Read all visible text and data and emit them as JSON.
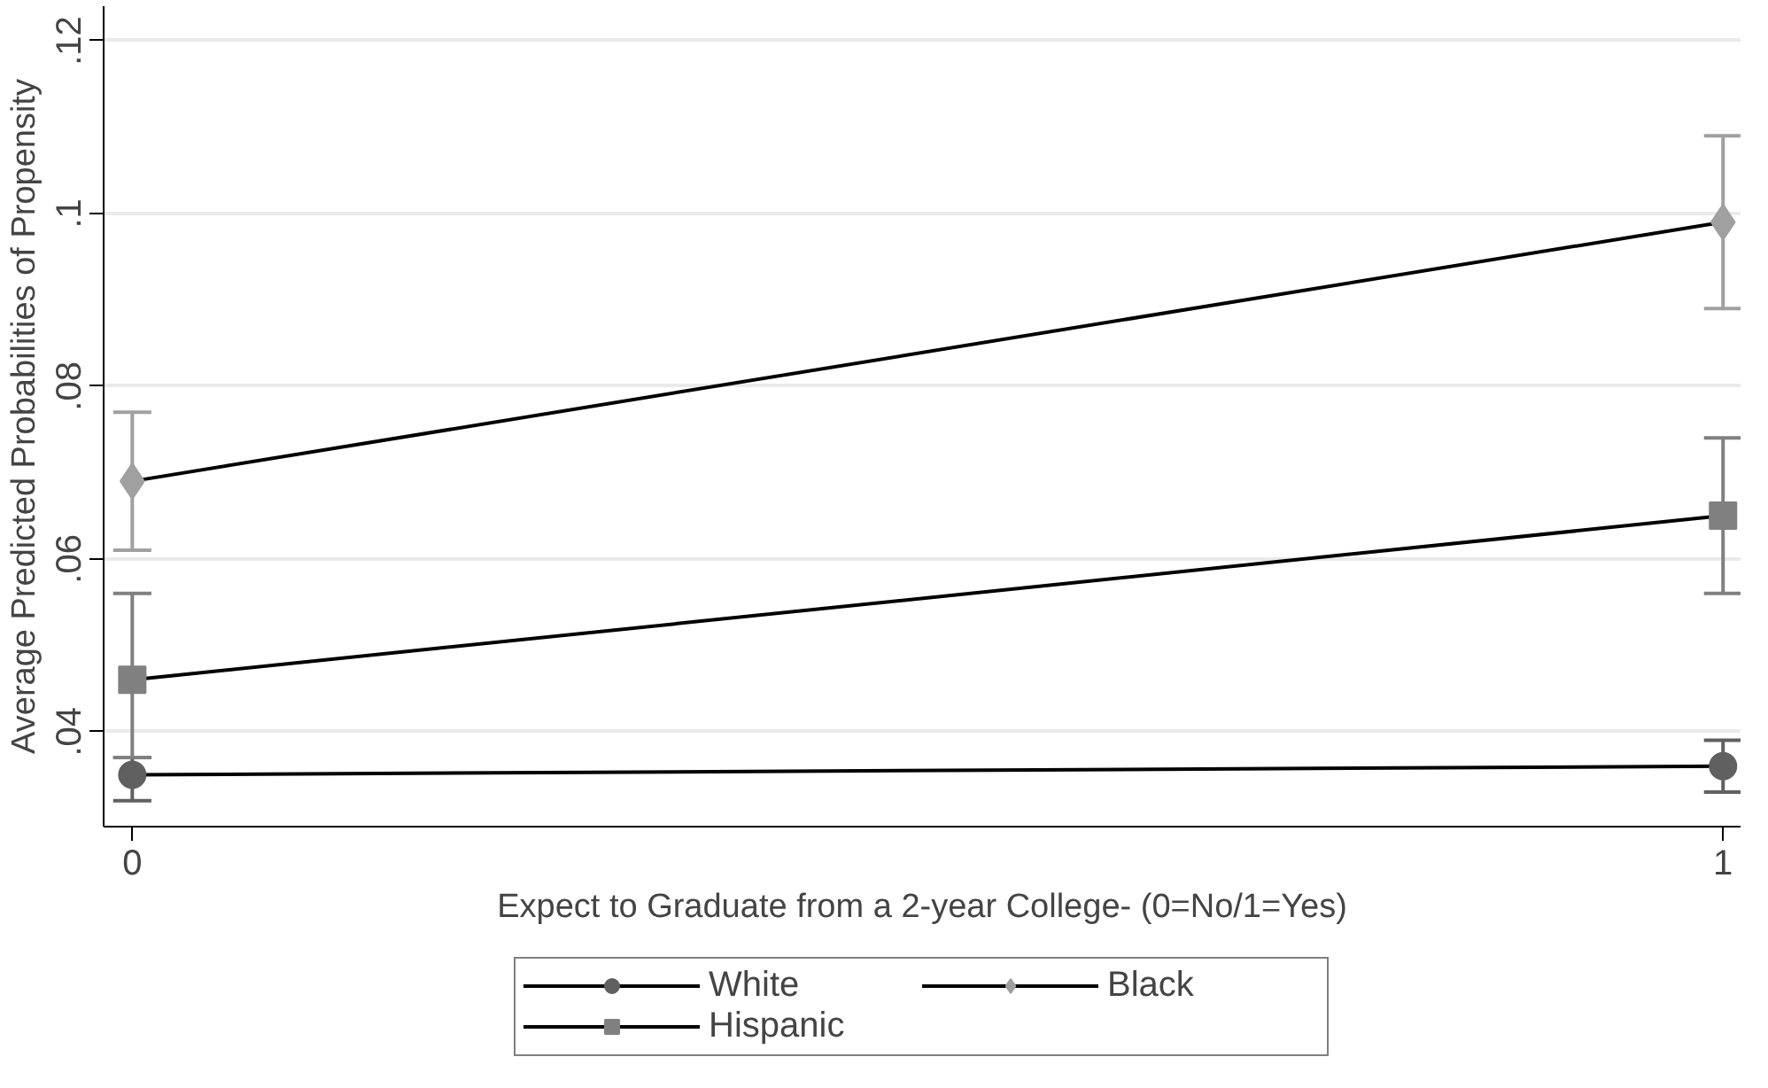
{
  "chart_data": {
    "type": "line",
    "xlabel": "Expect to Graduate from a 2-year College- (0=No/1=Yes)",
    "ylabel": "Average Predicted Probabilities of Propensity",
    "x": [
      0,
      1
    ],
    "xlim": [
      -0.018,
      1.011
    ],
    "xticks": [
      0,
      1
    ],
    "ylim": [
      0.029,
      0.124
    ],
    "yticks": [
      {
        "value": 0.04,
        "label": ".04"
      },
      {
        "value": 0.06,
        "label": ".06"
      },
      {
        "value": 0.08,
        "label": ".08"
      },
      {
        "value": 0.1,
        "label": ".1"
      },
      {
        "value": 0.12,
        "label": ".12"
      }
    ],
    "grid": "y",
    "legend": "bottom",
    "line_style": "solid",
    "series": [
      {
        "name": "White",
        "color": "#606060",
        "marker": "circle",
        "values": [
          0.035,
          0.036
        ],
        "errors": [
          [
            0.032,
            0.037
          ],
          [
            0.033,
            0.039
          ]
        ]
      },
      {
        "name": "Hispanic",
        "color": "#808080",
        "marker": "square",
        "values": [
          0.046,
          0.065
        ],
        "errors": [
          [
            0.037,
            0.056
          ],
          [
            0.056,
            0.074
          ]
        ]
      },
      {
        "name": "Black",
        "color": "#a0a0a0",
        "marker": "diamond",
        "values": [
          0.069,
          0.099
        ],
        "errors": [
          [
            0.061,
            0.077
          ],
          [
            0.089,
            0.109
          ]
        ]
      }
    ]
  }
}
